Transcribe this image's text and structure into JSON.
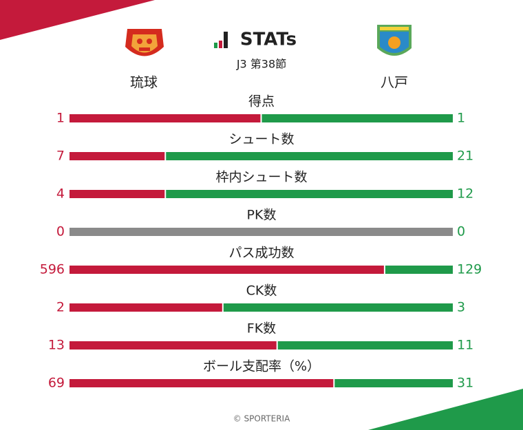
{
  "header": {
    "title": "STATs",
    "subtitle": "J3 第38節"
  },
  "teams": {
    "home": "琉球",
    "away": "八戸",
    "home_color": "#c41a3b",
    "away_color": "#1f9a4a",
    "empty_color": "#8a8a8a"
  },
  "stats": [
    {
      "label": "得点",
      "home": 1,
      "away": 1
    },
    {
      "label": "シュート数",
      "home": 7,
      "away": 21
    },
    {
      "label": "枠内シュート数",
      "home": 4,
      "away": 12
    },
    {
      "label": "PK数",
      "home": 0,
      "away": 0
    },
    {
      "label": "パス成功数",
      "home": 596,
      "away": 129
    },
    {
      "label": "CK数",
      "home": 2,
      "away": 3
    },
    {
      "label": "FK数",
      "home": 13,
      "away": 11
    },
    {
      "label": "ボール支配率（%）",
      "home": 69,
      "away": 31
    }
  ],
  "footer": "© SPORTERIA"
}
